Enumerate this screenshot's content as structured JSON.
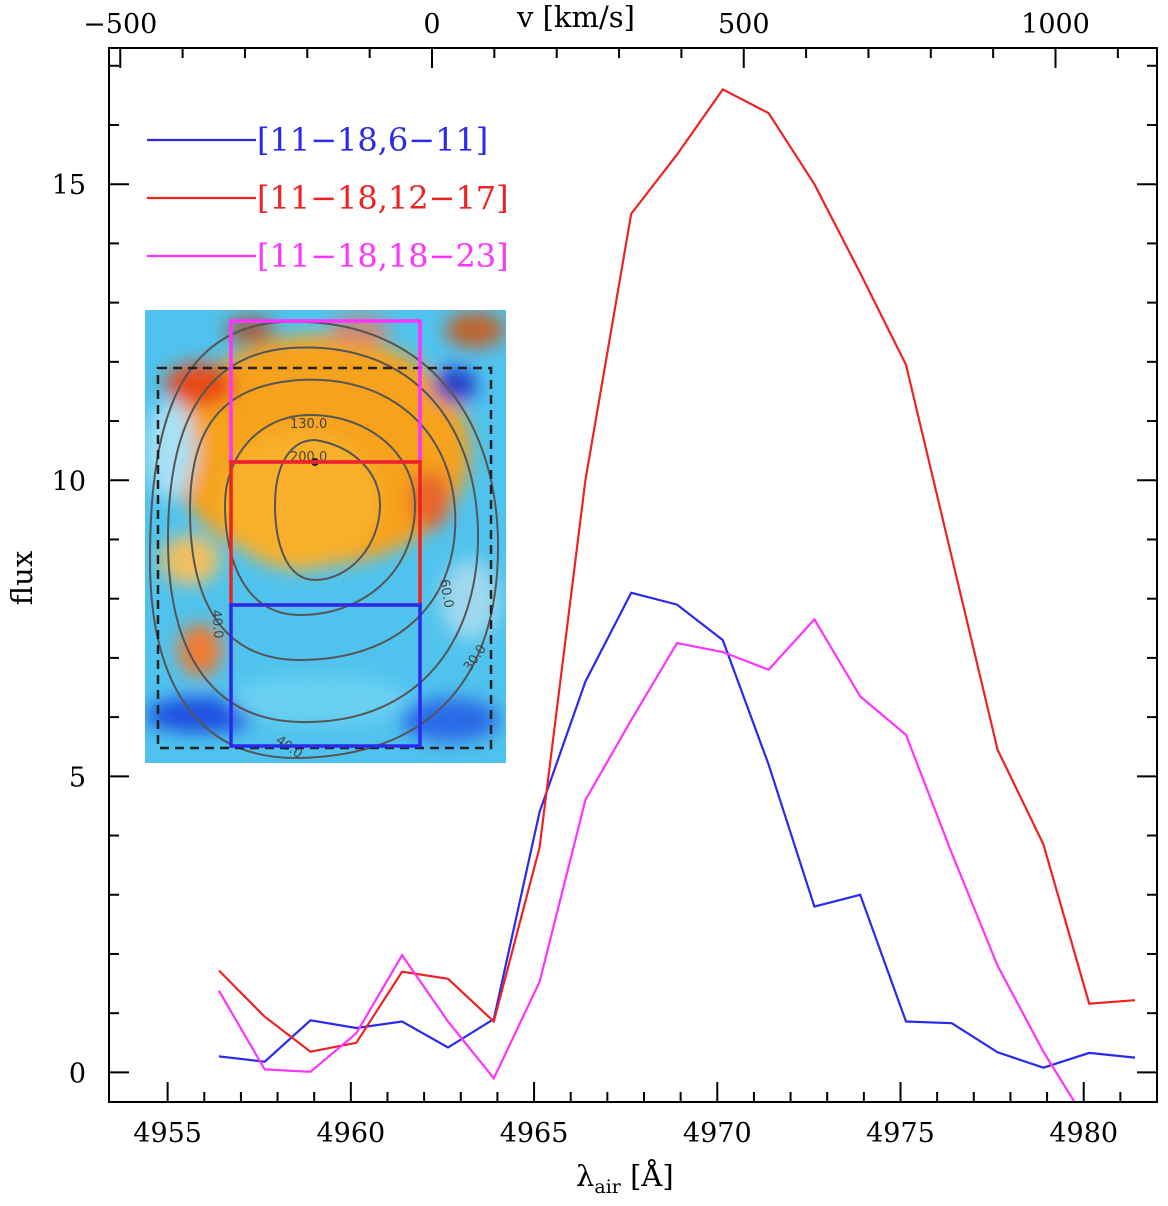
{
  "chart_data": {
    "type": "line",
    "xlabel": "λ",
    "xlabel_sub": "air",
    "xlabel_unit": "[Å]",
    "ylabel": "flux",
    "top_axis_label": "v [km/s]",
    "xlim": [
      4953.4,
      4982.0
    ],
    "ylim": [
      -0.5,
      17.3
    ],
    "x_ticks": [
      "4955",
      "4960",
      "4965",
      "4970",
      "4975",
      "4980"
    ],
    "y_ticks": [
      "0",
      "5",
      "10",
      "15"
    ],
    "top_ticks": [
      "−500",
      "0",
      "500",
      "1000"
    ],
    "grid": false,
    "legend_position": "top-left",
    "series": [
      {
        "name": "[11−18,6−11]",
        "color": "#2a2aee",
        "x": [
          4956.4,
          4957.65,
          4958.9,
          4960.15,
          4961.4,
          4962.65,
          4963.9,
          4965.15,
          4966.4,
          4967.65,
          4968.9,
          4970.15,
          4971.4,
          4972.65,
          4973.9,
          4975.15,
          4976.4,
          4977.65,
          4978.9,
          4980.15,
          4981.4
        ],
        "values": [
          0.27,
          0.18,
          0.88,
          0.75,
          0.86,
          0.42,
          0.9,
          4.4,
          6.6,
          8.1,
          7.9,
          7.3,
          5.2,
          2.8,
          3.0,
          0.86,
          0.83,
          0.34,
          0.08,
          0.33,
          0.25
        ]
      },
      {
        "name": "[11−18,12−17]",
        "color": "#ee2222",
        "x": [
          4956.4,
          4957.65,
          4958.9,
          4960.15,
          4961.4,
          4962.65,
          4963.9,
          4965.15,
          4966.4,
          4967.65,
          4968.9,
          4970.15,
          4971.4,
          4972.65,
          4973.9,
          4975.15,
          4976.4,
          4977.65,
          4978.9,
          4980.15,
          4981.4
        ],
        "values": [
          1.72,
          0.94,
          0.35,
          0.5,
          1.7,
          1.58,
          0.86,
          3.8,
          10.0,
          14.5,
          15.5,
          16.6,
          16.2,
          15.0,
          13.5,
          11.95,
          8.7,
          5.45,
          3.85,
          1.16,
          1.22
        ]
      },
      {
        "name": "[11−18,18−23]",
        "color": "#ff33ff",
        "x": [
          4956.4,
          4957.65,
          4958.9,
          4960.15,
          4961.4,
          4962.65,
          4963.9,
          4965.15,
          4966.4,
          4967.65,
          4968.9,
          4970.15,
          4971.4,
          4972.65,
          4973.9,
          4975.15,
          4976.4,
          4977.65,
          4978.9,
          4980.15
        ],
        "values": [
          1.38,
          0.05,
          0.01,
          0.66,
          1.98,
          0.86,
          -0.1,
          1.53,
          4.6,
          5.95,
          7.25,
          7.1,
          6.8,
          7.65,
          6.35,
          5.7,
          3.7,
          1.8,
          0.35,
          -0.9
        ]
      }
    ],
    "inset": {
      "contour_labels": [
        "130.0",
        "200.0",
        "60.0",
        "30.0",
        "40.0",
        "40.0"
      ],
      "box_colors": [
        "#ff33ff",
        "#ee2222",
        "#2a2aee"
      ]
    }
  }
}
